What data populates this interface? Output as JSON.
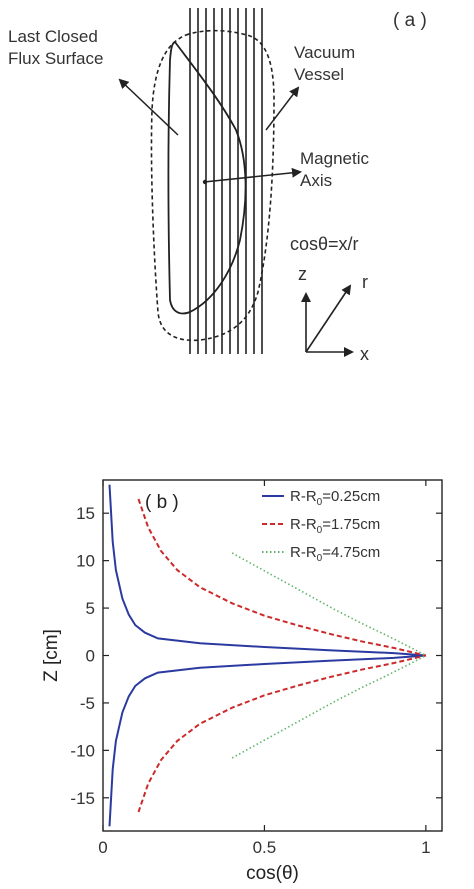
{
  "panel_a": {
    "label": "( a )",
    "annotations": {
      "lcfs_line1": "Last Closed",
      "lcfs_line2": "Flux Surface",
      "vessel_line1": "Vacuum",
      "vessel_line2": "Vessel",
      "axis_line1": "Magnetic",
      "axis_line2": "Axis",
      "formula": "cosθ=x/r"
    },
    "coord_labels": {
      "z": "z",
      "r": "r",
      "x": "x"
    },
    "colors": {
      "lines": "#222222"
    }
  },
  "chart_data": {
    "type": "line",
    "panel_label": "( b )",
    "xlabel": "cos(θ)",
    "ylabel": "Z [cm]",
    "xlim": [
      0,
      1.05
    ],
    "ylim": [
      -18.5,
      18.5
    ],
    "xticks": [
      0,
      0.5,
      1
    ],
    "xtick_labels": [
      "0",
      "0.5",
      "1"
    ],
    "yticks": [
      15,
      10,
      5,
      0,
      -5,
      -10,
      -15
    ],
    "ytick_labels": [
      "15",
      "10",
      "5",
      "0",
      "-5",
      "-10",
      "-15"
    ],
    "grid": false,
    "legend_position": "top-right",
    "series": [
      {
        "legend_prefix": "R-R",
        "legend_sub": "0",
        "legend_suffix": "=0.25cm",
        "color": "#2b3aa0",
        "dash": "solid",
        "upper": [
          [
            0.02,
            18
          ],
          [
            0.03,
            12
          ],
          [
            0.04,
            9
          ],
          [
            0.06,
            6
          ],
          [
            0.08,
            4.3
          ],
          [
            0.1,
            3.2
          ],
          [
            0.13,
            2.4
          ],
          [
            0.17,
            1.8
          ],
          [
            0.3,
            1.3
          ],
          [
            0.5,
            0.9
          ],
          [
            0.7,
            0.55
          ],
          [
            0.9,
            0.25
          ],
          [
            1,
            0
          ]
        ],
        "lower": [
          [
            0.02,
            -18
          ],
          [
            0.03,
            -12
          ],
          [
            0.04,
            -9
          ],
          [
            0.06,
            -6
          ],
          [
            0.08,
            -4.3
          ],
          [
            0.1,
            -3.2
          ],
          [
            0.13,
            -2.4
          ],
          [
            0.17,
            -1.8
          ],
          [
            0.3,
            -1.3
          ],
          [
            0.5,
            -0.9
          ],
          [
            0.7,
            -0.55
          ],
          [
            0.9,
            -0.25
          ],
          [
            1,
            0
          ]
        ]
      },
      {
        "legend_prefix": "R-R",
        "legend_sub": "0",
        "legend_suffix": "=1.75cm",
        "color": "#cc2a2a",
        "dash": "dashed",
        "upper": [
          [
            0.11,
            16.5
          ],
          [
            0.14,
            13.5
          ],
          [
            0.18,
            11
          ],
          [
            0.23,
            9
          ],
          [
            0.3,
            7.2
          ],
          [
            0.4,
            5.5
          ],
          [
            0.5,
            4.2
          ],
          [
            0.6,
            3.2
          ],
          [
            0.7,
            2.3
          ],
          [
            0.8,
            1.5
          ],
          [
            0.9,
            0.8
          ],
          [
            1,
            0
          ]
        ],
        "lower": [
          [
            0.11,
            -16.5
          ],
          [
            0.14,
            -13.5
          ],
          [
            0.18,
            -11
          ],
          [
            0.23,
            -9
          ],
          [
            0.3,
            -7.2
          ],
          [
            0.4,
            -5.5
          ],
          [
            0.5,
            -4.2
          ],
          [
            0.6,
            -3.2
          ],
          [
            0.7,
            -2.3
          ],
          [
            0.8,
            -1.5
          ],
          [
            0.9,
            -0.8
          ],
          [
            1,
            0
          ]
        ]
      },
      {
        "legend_prefix": "R-R",
        "legend_sub": "0",
        "legend_suffix": "=4.75cm",
        "color": "#5fb56a",
        "dash": "dotted",
        "upper": [
          [
            0.4,
            10.8
          ],
          [
            0.48,
            9.3
          ],
          [
            0.56,
            7.8
          ],
          [
            0.64,
            6.3
          ],
          [
            0.72,
            4.8
          ],
          [
            0.8,
            3.4
          ],
          [
            0.88,
            2.1
          ],
          [
            0.95,
            0.9
          ],
          [
            1,
            0
          ]
        ],
        "lower": [
          [
            0.4,
            -10.8
          ],
          [
            0.48,
            -9.3
          ],
          [
            0.56,
            -7.8
          ],
          [
            0.64,
            -6.3
          ],
          [
            0.72,
            -4.8
          ],
          [
            0.8,
            -3.4
          ],
          [
            0.88,
            -2.1
          ],
          [
            0.95,
            -0.9
          ],
          [
            1,
            0
          ]
        ]
      }
    ]
  }
}
